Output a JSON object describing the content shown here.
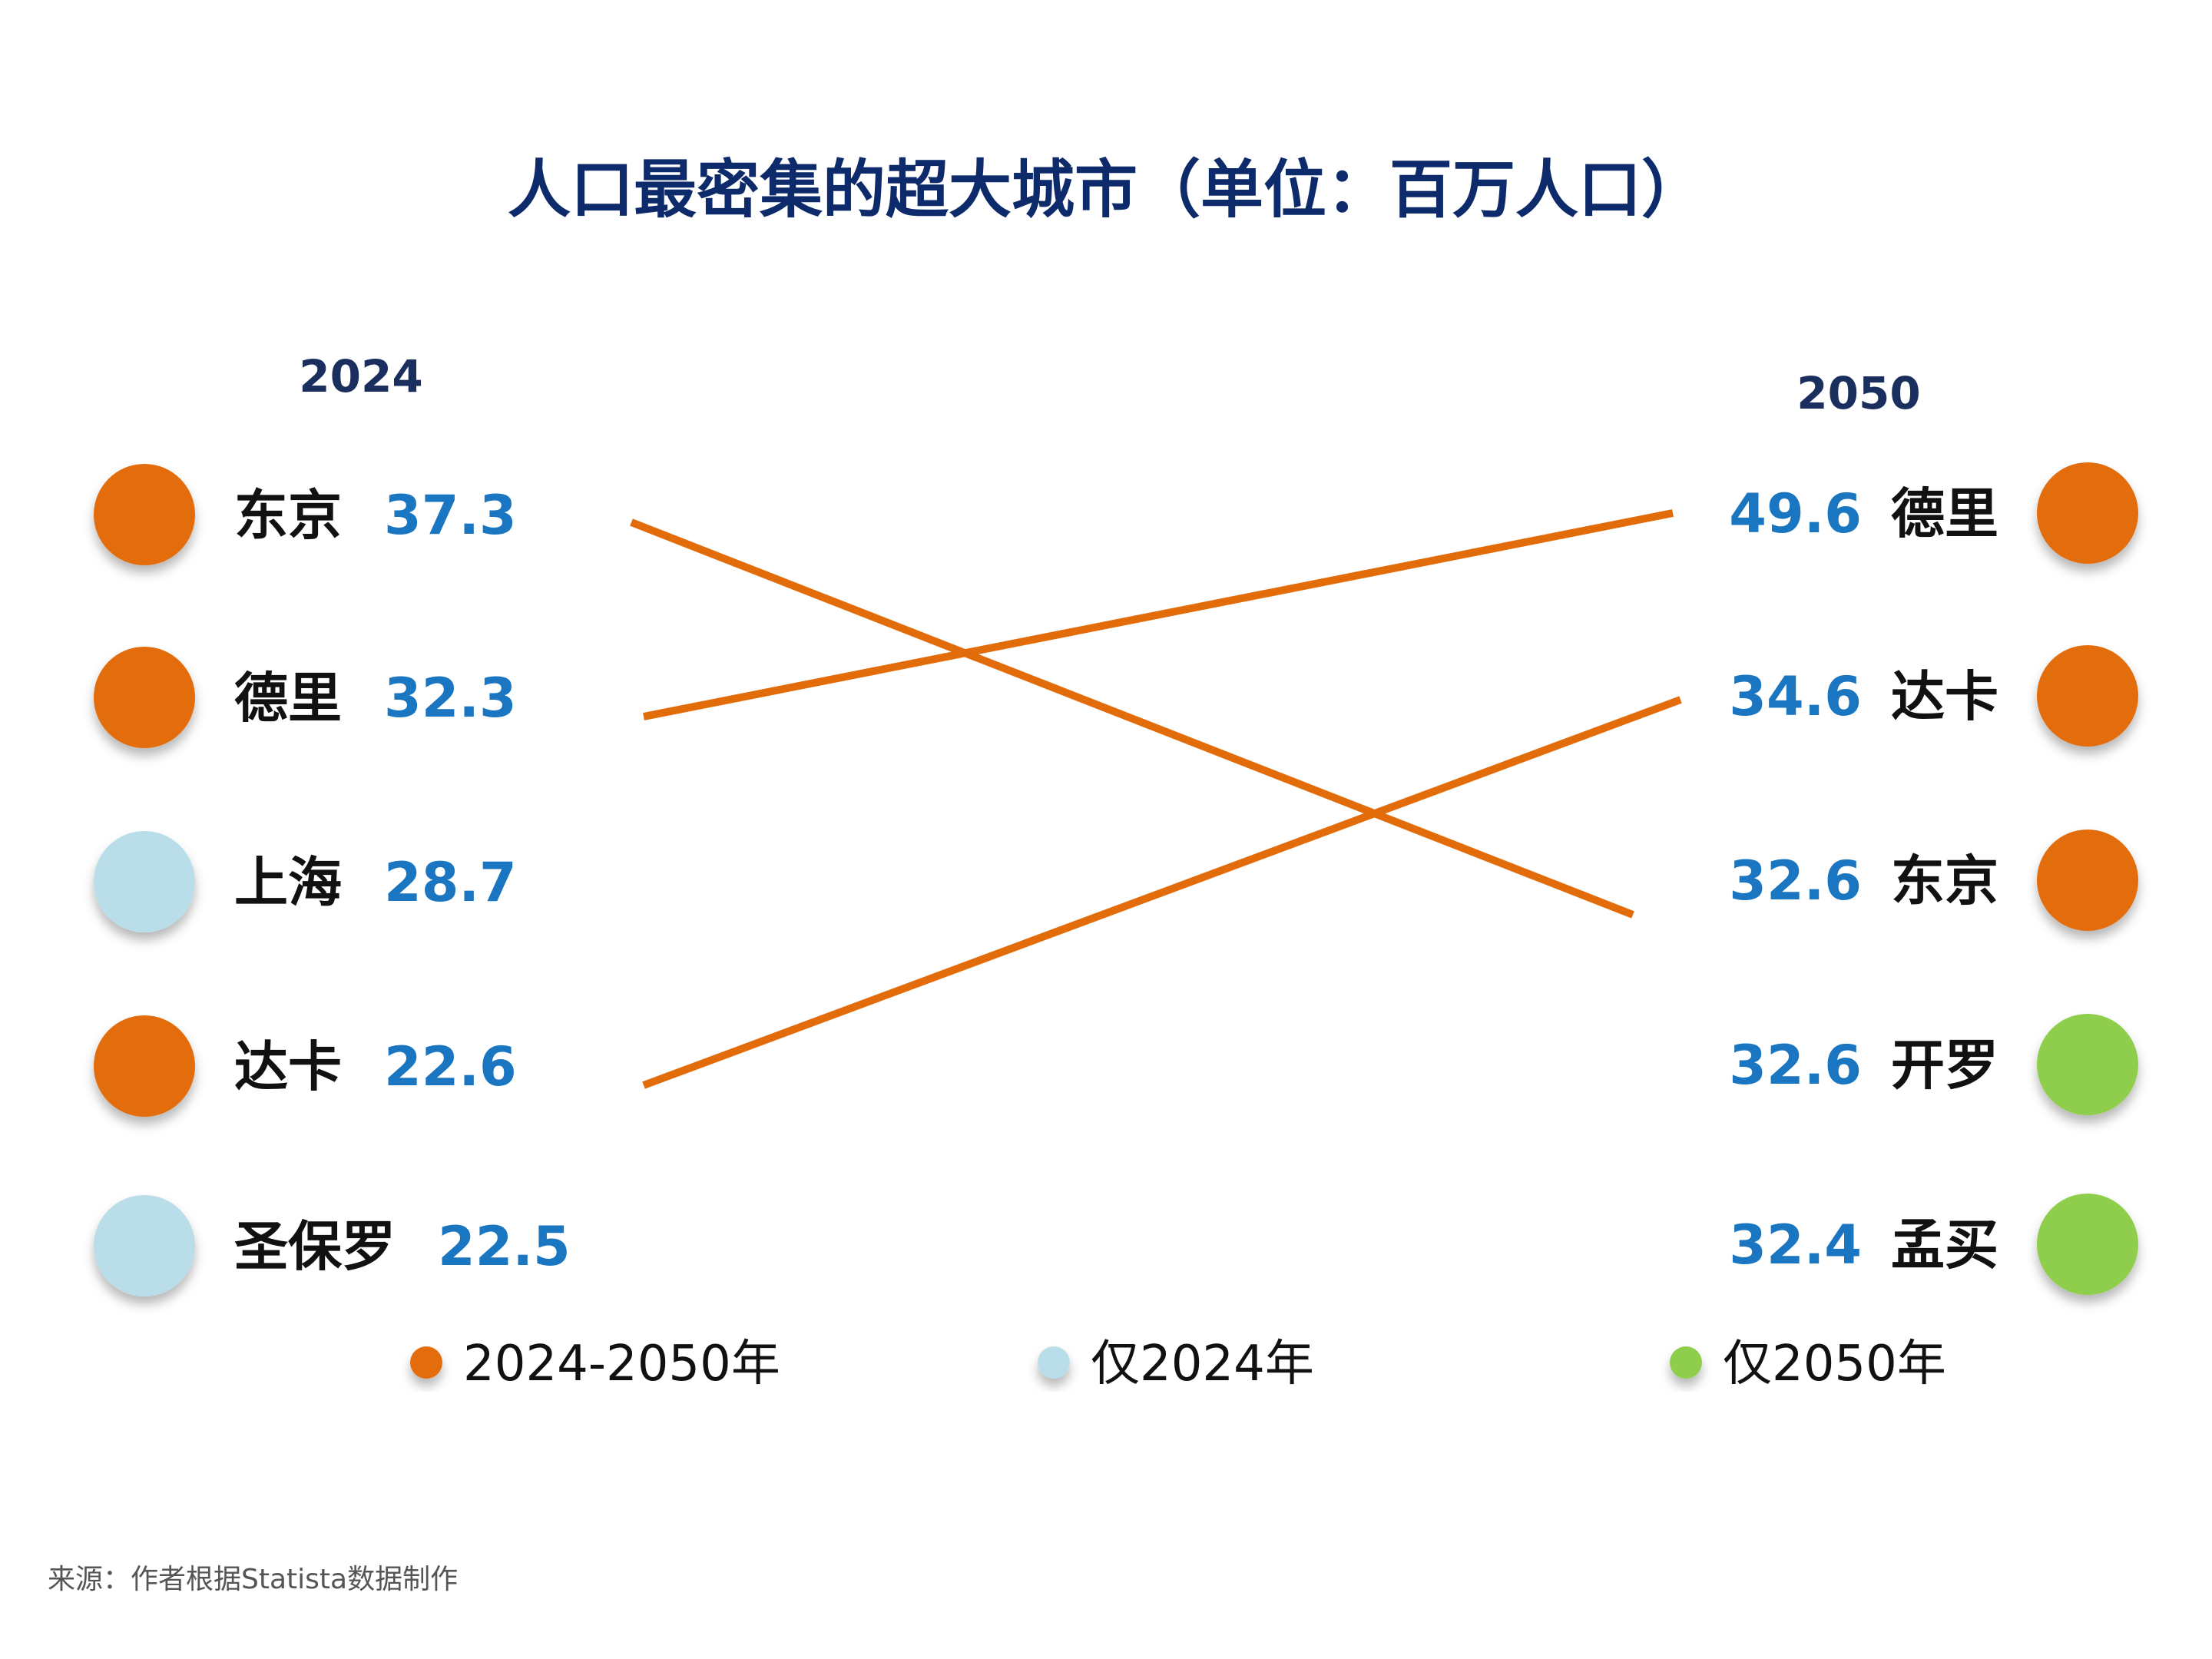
{
  "title": "人口最密集的超大城市（单位：百万人口）",
  "source": "来源：作者根据Statista数据制作",
  "colors": {
    "both": "#e36c0a",
    "only_2024": "#b9dee9",
    "only_2050": "#8fce4e",
    "value": "#1a76c0",
    "title": "#0d2b6b"
  },
  "chart_data": {
    "type": "slope",
    "unit": "百万人口",
    "left_year": "2024",
    "right_year": "2050",
    "left": [
      {
        "city": "东京",
        "value": 37.3,
        "category": "both"
      },
      {
        "city": "德里",
        "value": 32.3,
        "category": "both"
      },
      {
        "city": "上海",
        "value": 28.7,
        "category": "only_2024"
      },
      {
        "city": "达卡",
        "value": 22.6,
        "category": "both"
      },
      {
        "city": "圣保罗",
        "value": 22.5,
        "category": "only_2024"
      }
    ],
    "right": [
      {
        "city": "德里",
        "value": 49.6,
        "category": "both"
      },
      {
        "city": "达卡",
        "value": 34.6,
        "category": "both"
      },
      {
        "city": "东京",
        "value": 32.6,
        "category": "both"
      },
      {
        "city": "开罗",
        "value": 32.6,
        "category": "only_2050"
      },
      {
        "city": "孟买",
        "value": 32.4,
        "category": "only_2050"
      }
    ],
    "legend": [
      {
        "key": "both",
        "label": "2024-2050年"
      },
      {
        "key": "only_2024",
        "label": "仅2024年"
      },
      {
        "key": "only_2050",
        "label": "仅2050年"
      }
    ]
  }
}
